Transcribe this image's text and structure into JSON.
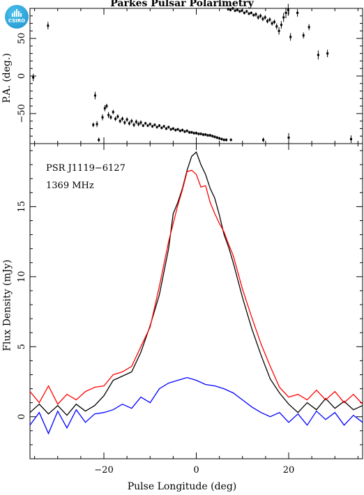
{
  "figure": {
    "title": "Parkes Pulsar Polarimetry",
    "logo_text": "CSIRO",
    "logo_icon": "csiro-bars-icon",
    "source": "PSR J1119−6127",
    "frequency": "1369 MHz"
  },
  "chart_data": [
    {
      "type": "scatter",
      "title": "Parkes Pulsar Polarimetry",
      "ylabel": "P.A. (deg.)",
      "xlim": [
        -36,
        36
      ],
      "ylim": [
        -90,
        90
      ],
      "x_ticks": [
        -20,
        0,
        20
      ],
      "y_ticks": [
        -50,
        0,
        50
      ],
      "y_tick_labels": [
        "−50",
        "0",
        "50"
      ],
      "error_bars": true,
      "series": [
        {
          "color": "#000000",
          "points": [
            [
              -35.3,
              -2,
              5
            ],
            [
              -32.1,
              67,
              5
            ],
            [
              -22.3,
              -65,
              3
            ],
            [
              -21.9,
              -26,
              5
            ],
            [
              -21.5,
              -64,
              4
            ],
            [
              -21.1,
              -85,
              3
            ],
            [
              -20.3,
              -55,
              4
            ],
            [
              -19.8,
              -43,
              4
            ],
            [
              -19.4,
              -40,
              3
            ],
            [
              -19.0,
              -52,
              4
            ],
            [
              -18.5,
              -55,
              3
            ],
            [
              -18.0,
              -48,
              3
            ],
            [
              -17.5,
              -57,
              3
            ],
            [
              -17.0,
              -54,
              3
            ],
            [
              -16.5,
              -60,
              3
            ],
            [
              -16.0,
              -57,
              3
            ],
            [
              -15.5,
              -62,
              3
            ],
            [
              -15.0,
              -58,
              3
            ],
            [
              -14.5,
              -63,
              3
            ],
            [
              -14.0,
              -60,
              3
            ],
            [
              -13.5,
              -65,
              3
            ],
            [
              -13.0,
              -61,
              3
            ],
            [
              -12.5,
              -64,
              3
            ],
            [
              -12.0,
              -62,
              3
            ],
            [
              -11.5,
              -66,
              2
            ],
            [
              -11.0,
              -63,
              2
            ],
            [
              -10.5,
              -66,
              2
            ],
            [
              -10.0,
              -64,
              2
            ],
            [
              -9.5,
              -67,
              2
            ],
            [
              -9.0,
              -65,
              2
            ],
            [
              -8.5,
              -68,
              2
            ],
            [
              -8.0,
              -66,
              2
            ],
            [
              -7.5,
              -69,
              2
            ],
            [
              -7.0,
              -67,
              2
            ],
            [
              -6.5,
              -70,
              2
            ],
            [
              -6.0,
              -68,
              2
            ],
            [
              -5.5,
              -71,
              2
            ],
            [
              -5.0,
              -70,
              2
            ],
            [
              -4.5,
              -72,
              2
            ],
            [
              -4.0,
              -71,
              2
            ],
            [
              -3.5,
              -73,
              2
            ],
            [
              -3.0,
              -72,
              2
            ],
            [
              -2.5,
              -74,
              2
            ],
            [
              -2.0,
              -73,
              2
            ],
            [
              -1.5,
              -75,
              2
            ],
            [
              -1.0,
              -75,
              2
            ],
            [
              -0.5,
              -76,
              2
            ],
            [
              0.0,
              -76,
              2
            ],
            [
              0.5,
              -77,
              2
            ],
            [
              1.0,
              -77,
              2
            ],
            [
              1.5,
              -78,
              2
            ],
            [
              2.0,
              -78,
              2
            ],
            [
              2.5,
              -79,
              2
            ],
            [
              3.0,
              -79,
              2
            ],
            [
              3.5,
              -80,
              2
            ],
            [
              4.0,
              -81,
              2
            ],
            [
              4.5,
              -82,
              2
            ],
            [
              5.0,
              -83,
              2
            ],
            [
              5.5,
              -84,
              2
            ],
            [
              6.0,
              -85,
              2
            ],
            [
              6.5,
              -85,
              2
            ],
            [
              7.5,
              -85,
              2
            ],
            [
              14.5,
              -85,
              3
            ],
            [
              20.0,
              -82,
              6
            ],
            [
              33.5,
              -84,
              5
            ],
            [
              6.9,
              89,
              2
            ],
            [
              7.4,
              88,
              2
            ],
            [
              7.9,
              90,
              2
            ],
            [
              8.4,
              87,
              2
            ],
            [
              8.9,
              88,
              2
            ],
            [
              9.4,
              86,
              2
            ],
            [
              9.9,
              87,
              2
            ],
            [
              10.4,
              84,
              2
            ],
            [
              10.9,
              86,
              2
            ],
            [
              11.4,
              83,
              2
            ],
            [
              11.9,
              84,
              2
            ],
            [
              12.4,
              81,
              2
            ],
            [
              12.9,
              82,
              3
            ],
            [
              13.4,
              78,
              3
            ],
            [
              13.9,
              80,
              3
            ],
            [
              14.4,
              76,
              3
            ],
            [
              14.9,
              78,
              3
            ],
            [
              15.4,
              73,
              3
            ],
            [
              15.9,
              75,
              3
            ],
            [
              16.4,
              70,
              3
            ],
            [
              16.9,
              72,
              3
            ],
            [
              17.4,
              66,
              4
            ],
            [
              17.9,
              60,
              5
            ],
            [
              18.4,
              68,
              5
            ],
            [
              18.9,
              78,
              6
            ],
            [
              19.4,
              84,
              7
            ],
            [
              19.9,
              88,
              8
            ],
            [
              20.4,
              52,
              5
            ],
            [
              21.9,
              84,
              5
            ],
            [
              23.2,
              54,
              4
            ],
            [
              24.4,
              65,
              4
            ],
            [
              26.4,
              28,
              6
            ],
            [
              28.4,
              30,
              5
            ]
          ]
        }
      ]
    },
    {
      "type": "line",
      "xlabel": "Pulse Longitude (deg)",
      "ylabel": "Flux Density (mJy)",
      "xlim": [
        -36,
        36
      ],
      "ylim": [
        -3,
        19.5
      ],
      "x_ticks": [
        -20,
        0,
        20
      ],
      "x_tick_labels": [
        "−20",
        "0",
        "20"
      ],
      "y_ticks": [
        0,
        5,
        10,
        15
      ],
      "series": [
        {
          "color": "#000000",
          "points": [
            [
              -36,
              0.3
            ],
            [
              -34,
              0.9
            ],
            [
              -32,
              0.2
            ],
            [
              -30,
              0.8
            ],
            [
              -28,
              0.1
            ],
            [
              -26,
              0.9
            ],
            [
              -24,
              0.4
            ],
            [
              -22,
              0.8
            ],
            [
              -20,
              1.5
            ],
            [
              -18,
              2.6
            ],
            [
              -16,
              2.9
            ],
            [
              -14,
              3.2
            ],
            [
              -12,
              4.6
            ],
            [
              -10,
              6.5
            ],
            [
              -8,
              8.7
            ],
            [
              -6,
              12.0
            ],
            [
              -5,
              14.5
            ],
            [
              -4,
              15.3
            ],
            [
              -3,
              16.3
            ],
            [
              -2,
              17.6
            ],
            [
              -1,
              18.6
            ],
            [
              0,
              18.9
            ],
            [
              1,
              18.0
            ],
            [
              2,
              17.3
            ],
            [
              3,
              16.3
            ],
            [
              4,
              15.6
            ],
            [
              5,
              14.4
            ],
            [
              6,
              13.0
            ],
            [
              7,
              12.1
            ],
            [
              8,
              11.0
            ],
            [
              10,
              8.5
            ],
            [
              12,
              6.3
            ],
            [
              14,
              4.4
            ],
            [
              16,
              2.7
            ],
            [
              18,
              1.7
            ],
            [
              20,
              0.9
            ],
            [
              22,
              0.3
            ],
            [
              24,
              1.0
            ],
            [
              26,
              0.5
            ],
            [
              28,
              1.3
            ],
            [
              30,
              0.6
            ],
            [
              32,
              1.1
            ],
            [
              34,
              0.5
            ],
            [
              36,
              0.8
            ]
          ]
        },
        {
          "color": "#ff0000",
          "points": [
            [
              -36,
              1.8
            ],
            [
              -34,
              1.0
            ],
            [
              -32,
              2.2
            ],
            [
              -30,
              0.9
            ],
            [
              -28,
              1.6
            ],
            [
              -26,
              1.2
            ],
            [
              -24,
              1.8
            ],
            [
              -22,
              2.1
            ],
            [
              -20,
              2.2
            ],
            [
              -18,
              3.0
            ],
            [
              -16,
              3.2
            ],
            [
              -14,
              3.6
            ],
            [
              -12,
              5.0
            ],
            [
              -10,
              6.4
            ],
            [
              -8,
              9.3
            ],
            [
              -6,
              12.5
            ],
            [
              -5,
              13.8
            ],
            [
              -4,
              15.1
            ],
            [
              -3,
              16.2
            ],
            [
              -2,
              17.5
            ],
            [
              -1,
              17.6
            ],
            [
              0,
              17.3
            ],
            [
              1,
              16.4
            ],
            [
              2,
              16.5
            ],
            [
              3,
              15.3
            ],
            [
              4,
              14.5
            ],
            [
              5,
              13.8
            ],
            [
              6,
              13.2
            ],
            [
              7,
              12.3
            ],
            [
              8,
              11.5
            ],
            [
              10,
              9.1
            ],
            [
              12,
              7.1
            ],
            [
              14,
              5.2
            ],
            [
              16,
              3.6
            ],
            [
              18,
              2.1
            ],
            [
              20,
              1.4
            ],
            [
              22,
              1.6
            ],
            [
              24,
              1.2
            ],
            [
              26,
              1.9
            ],
            [
              28,
              1.2
            ],
            [
              30,
              1.8
            ],
            [
              32,
              1.0
            ],
            [
              34,
              1.6
            ],
            [
              36,
              0.9
            ]
          ]
        },
        {
          "color": "#0000ff",
          "points": [
            [
              -36,
              -0.6
            ],
            [
              -34,
              0.3
            ],
            [
              -32,
              -1.2
            ],
            [
              -30,
              0.4
            ],
            [
              -28,
              -0.8
            ],
            [
              -26,
              0.5
            ],
            [
              -24,
              -0.4
            ],
            [
              -22,
              0.2
            ],
            [
              -20,
              0.3
            ],
            [
              -18,
              0.5
            ],
            [
              -16,
              0.9
            ],
            [
              -14,
              0.6
            ],
            [
              -12,
              1.4
            ],
            [
              -10,
              1.0
            ],
            [
              -8,
              2.0
            ],
            [
              -6,
              2.4
            ],
            [
              -4,
              2.6
            ],
            [
              -2,
              2.8
            ],
            [
              0,
              2.6
            ],
            [
              2,
              2.3
            ],
            [
              4,
              2.2
            ],
            [
              6,
              2.0
            ],
            [
              8,
              1.7
            ],
            [
              10,
              1.2
            ],
            [
              12,
              0.7
            ],
            [
              14,
              0.3
            ],
            [
              16,
              0.0
            ],
            [
              18,
              0.3
            ],
            [
              20,
              -0.4
            ],
            [
              22,
              0.2
            ],
            [
              24,
              -0.6
            ],
            [
              26,
              0.4
            ],
            [
              28,
              -0.2
            ],
            [
              30,
              0.3
            ],
            [
              32,
              -0.6
            ],
            [
              34,
              0.1
            ],
            [
              36,
              -0.4
            ]
          ]
        }
      ]
    }
  ]
}
